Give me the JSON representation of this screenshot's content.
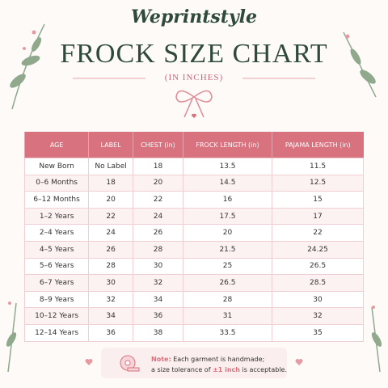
{
  "header": {
    "brand": "Weprintstyle",
    "title": "FROCK SIZE CHART",
    "subtitle": "(IN INCHES)"
  },
  "table": {
    "columns": [
      "AGE",
      "LABEL",
      "CHEST (in)",
      "FROCK LENGTH (in)",
      "PAJAMA LENGTH (in)"
    ],
    "rows": [
      [
        "New Born",
        "No Label",
        18,
        13.5,
        11.5
      ],
      [
        "0–6 Months",
        18,
        20,
        14.5,
        12.5
      ],
      [
        "6–12 Months",
        20,
        22,
        16,
        15
      ],
      [
        "1–2 Years",
        22,
        24,
        17.5,
        17
      ],
      [
        "2–4 Years",
        24,
        26,
        20,
        22
      ],
      [
        "4–5 Years",
        26,
        28,
        21.5,
        24.25
      ],
      [
        "5–6 Years",
        28,
        30,
        25,
        26.5
      ],
      [
        "6–7 Years",
        30,
        32,
        26.5,
        28.5
      ],
      [
        "8–9 Years",
        32,
        34,
        28,
        30
      ],
      [
        "10–12 Years",
        34,
        36,
        31,
        32
      ],
      [
        "12–14 Years",
        36,
        38,
        33.5,
        35
      ]
    ]
  },
  "note": {
    "label": "Note:",
    "line1": "Each garment is handmade;",
    "line2_start": "a size tolerance of",
    "line2_bold": "±1 inch",
    "line2_end": "is acceptable."
  }
}
